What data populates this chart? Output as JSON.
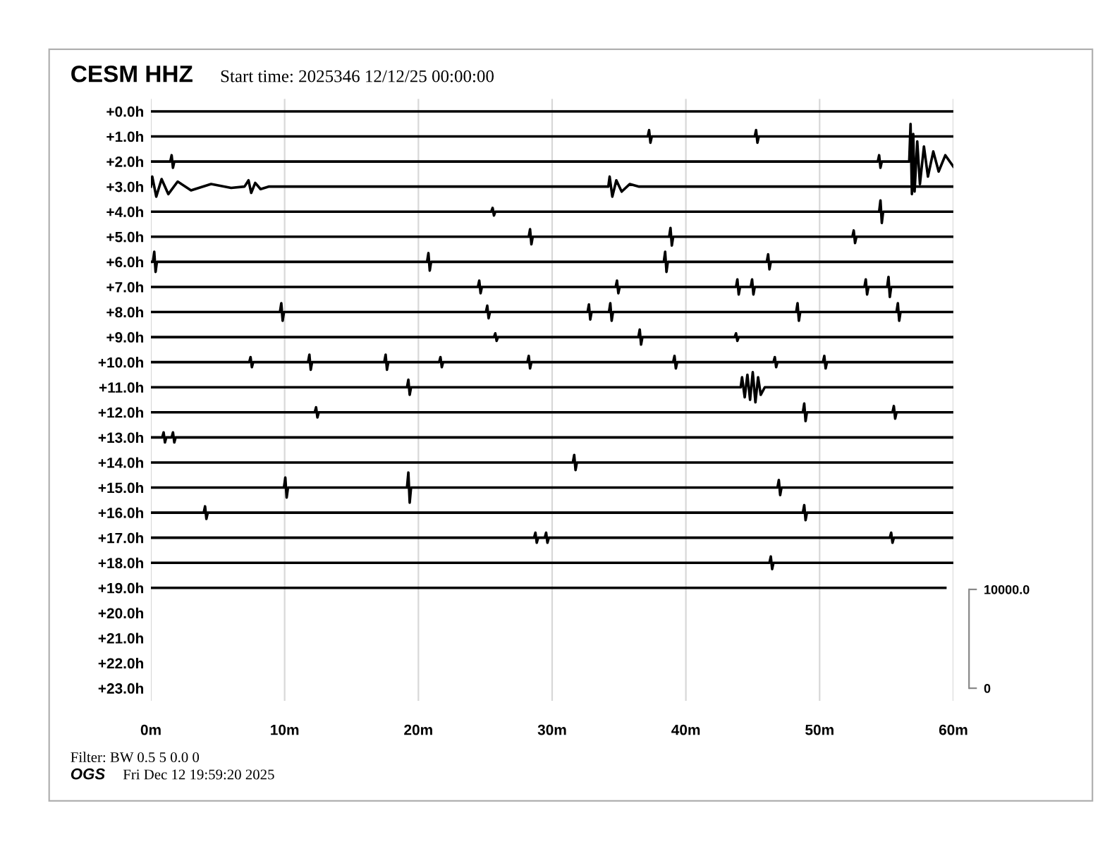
{
  "chart_data": {
    "type": "line",
    "title": "CESM HHZ",
    "subtitle": "Start time: 2025346 12/12/25 00:00:00",
    "annotations": [
      "Filter: BW 0.5 5 0.0 0",
      "OGS",
      "Fri Dec 12 19:59:20 2025"
    ],
    "xlim": [
      0,
      60
    ],
    "xticks": [
      {
        "value": 0,
        "label": "0m"
      },
      {
        "value": 10,
        "label": "10m"
      },
      {
        "value": 20,
        "label": "20m"
      },
      {
        "value": 30,
        "label": "30m"
      },
      {
        "value": 40,
        "label": "40m"
      },
      {
        "value": 50,
        "label": "50m"
      },
      {
        "value": 60,
        "label": "60m"
      }
    ],
    "ylim": [
      23.5,
      -0.5
    ],
    "yticks": [
      {
        "value": 0,
        "label": "+0.0h"
      },
      {
        "value": 1,
        "label": "+1.0h"
      },
      {
        "value": 2,
        "label": "+2.0h"
      },
      {
        "value": 3,
        "label": "+3.0h"
      },
      {
        "value": 4,
        "label": "+4.0h"
      },
      {
        "value": 5,
        "label": "+5.0h"
      },
      {
        "value": 6,
        "label": "+6.0h"
      },
      {
        "value": 7,
        "label": "+7.0h"
      },
      {
        "value": 8,
        "label": "+8.0h"
      },
      {
        "value": 9,
        "label": "+9.0h"
      },
      {
        "value": 10,
        "label": "+10.0h"
      },
      {
        "value": 11,
        "label": "+11.0h"
      },
      {
        "value": 12,
        "label": "+12.0h"
      },
      {
        "value": 13,
        "label": "+13.0h"
      },
      {
        "value": 14,
        "label": "+14.0h"
      },
      {
        "value": 15,
        "label": "+15.0h"
      },
      {
        "value": 16,
        "label": "+16.0h"
      },
      {
        "value": 17,
        "label": "+17.0h"
      },
      {
        "value": 18,
        "label": "+18.0h"
      },
      {
        "value": 19,
        "label": "+19.0h"
      },
      {
        "value": 20,
        "label": "+20.0h"
      },
      {
        "value": 21,
        "label": "+21.0h"
      },
      {
        "value": 22,
        "label": "+22.0h"
      },
      {
        "value": 23,
        "label": "+23.0h"
      }
    ],
    "y2lim": [
      -1270,
      59650
    ],
    "y2ticks": [
      0,
      {
        "value": 10000,
        "label": "10000.0"
      }
    ],
    "grid": "x",
    "legend": false,
    "marker": "none",
    "line_style": "solid",
    "series": [
      {
        "color": "#000000",
        "x": [
          0,
          60
        ],
        "values": [
          0,
          0
        ]
      },
      {
        "color": "#000000",
        "x": [
          0,
          37.15,
          37.25,
          37.35,
          37.45,
          45.15,
          45.25,
          45.35,
          45.45,
          60
        ],
        "values": [
          1,
          1,
          0.75,
          1.25,
          1,
          1,
          0.75,
          1.25,
          1,
          1
        ]
      },
      {
        "color": "#000000",
        "x": [
          0,
          1.45,
          1.55,
          1.65,
          1.75,
          54.35,
          54.45,
          54.55,
          54.65,
          56.7,
          56.8,
          56.9,
          57.0,
          57.1,
          57.3,
          57.5,
          57.8,
          58.1,
          58.5,
          58.9,
          59.4,
          60
        ],
        "values": [
          2,
          2,
          1.75,
          2.25,
          2,
          2,
          1.75,
          2.25,
          2,
          2,
          0.5,
          3.3,
          0.9,
          3.2,
          1.2,
          2.9,
          1.4,
          2.6,
          1.6,
          2.4,
          1.75,
          2.2
        ]
      },
      {
        "color": "#000000",
        "x": [
          0,
          0.1,
          0.4,
          0.8,
          1.3,
          2,
          3,
          4.5,
          6,
          7,
          7.3,
          7.5,
          7.8,
          8.2,
          8.8,
          34.2,
          34.3,
          34.5,
          34.8,
          35.2,
          35.8,
          36.5,
          60
        ],
        "values": [
          3,
          2.6,
          3.4,
          2.7,
          3.3,
          2.8,
          3.15,
          2.9,
          3.05,
          3,
          2.75,
          3.25,
          2.85,
          3.1,
          3,
          3,
          2.6,
          3.4,
          2.75,
          3.2,
          2.9,
          3,
          3
        ]
      },
      {
        "color": "#000000",
        "x": [
          0,
          25.45,
          25.55,
          25.65,
          25.75,
          54.45,
          54.55,
          54.65,
          54.75,
          60
        ],
        "values": [
          4,
          4,
          3.85,
          4.15,
          4,
          4,
          3.55,
          4.45,
          4,
          4
        ]
      },
      {
        "color": "#000000",
        "x": [
          0,
          28.25,
          28.35,
          28.45,
          28.55,
          38.75,
          38.85,
          38.95,
          39.05,
          52.45,
          52.55,
          52.65,
          52.75,
          60
        ],
        "values": [
          5,
          5,
          4.7,
          5.3,
          5,
          5,
          4.65,
          5.35,
          5,
          5,
          4.75,
          5.25,
          5,
          5
        ]
      },
      {
        "color": "#000000",
        "x": [
          0,
          0.15,
          0.25,
          0.35,
          0.45,
          20.65,
          20.75,
          20.85,
          20.95,
          38.35,
          38.45,
          38.55,
          38.65,
          46.05,
          46.15,
          46.25,
          46.35,
          60
        ],
        "values": [
          6,
          6,
          5.6,
          6.4,
          6,
          6,
          5.65,
          6.35,
          6,
          6,
          5.6,
          6.4,
          6,
          6,
          5.7,
          6.3,
          6,
          6
        ]
      },
      {
        "color": "#000000",
        "x": [
          0,
          24.45,
          24.55,
          24.65,
          24.75,
          34.75,
          34.85,
          34.95,
          35.05,
          43.75,
          43.85,
          43.95,
          44.05,
          44.85,
          44.95,
          45.05,
          45.15,
          53.35,
          53.45,
          53.55,
          53.65,
          55.05,
          55.15,
          55.25,
          55.35,
          60
        ],
        "values": [
          7,
          7,
          6.75,
          7.25,
          7,
          7,
          6.75,
          7.25,
          7,
          7,
          6.7,
          7.3,
          7,
          7,
          6.7,
          7.3,
          7,
          7,
          6.7,
          7.3,
          7,
          7,
          6.6,
          7.4,
          7,
          7
        ]
      },
      {
        "color": "#000000",
        "x": [
          0,
          9.65,
          9.75,
          9.85,
          9.95,
          25.05,
          25.15,
          25.25,
          25.35,
          32.65,
          32.75,
          32.85,
          32.95,
          34.25,
          34.35,
          34.45,
          34.55,
          48.25,
          48.35,
          48.45,
          48.55,
          55.75,
          55.85,
          55.95,
          56.05,
          60
        ],
        "values": [
          8,
          8,
          7.65,
          8.35,
          8,
          8,
          7.75,
          8.25,
          8,
          8,
          7.7,
          8.3,
          8,
          8,
          7.65,
          8.35,
          8,
          8,
          7.65,
          8.35,
          8,
          8,
          7.65,
          8.35,
          8,
          8
        ]
      },
      {
        "color": "#000000",
        "x": [
          0,
          25.65,
          25.75,
          25.85,
          25.95,
          36.45,
          36.55,
          36.65,
          36.75,
          43.65,
          43.75,
          43.85,
          43.95,
          60
        ],
        "values": [
          9,
          9,
          8.85,
          9.15,
          9,
          9,
          8.7,
          9.3,
          9,
          9,
          8.85,
          9.15,
          9,
          9
        ]
      },
      {
        "color": "#000000",
        "x": [
          0,
          7.35,
          7.45,
          7.55,
          7.65,
          11.75,
          11.85,
          11.95,
          12.05,
          17.45,
          17.55,
          17.65,
          17.75,
          21.55,
          21.65,
          21.75,
          21.85,
          28.15,
          28.25,
          28.35,
          28.45,
          39.05,
          39.15,
          39.25,
          39.35,
          46.55,
          46.65,
          46.75,
          46.85,
          50.25,
          50.35,
          50.45,
          50.55,
          60
        ],
        "values": [
          10,
          10,
          9.8,
          10.2,
          10,
          10,
          9.7,
          10.3,
          10,
          10,
          9.7,
          10.3,
          10,
          10,
          9.8,
          10.2,
          10,
          10,
          9.75,
          10.25,
          10,
          10,
          9.75,
          10.25,
          10,
          10,
          9.8,
          10.2,
          10,
          10,
          9.75,
          10.25,
          10,
          10
        ]
      },
      {
        "color": "#000000",
        "x": [
          0,
          19.15,
          19.25,
          19.35,
          19.45,
          44.1,
          44.2,
          44.4,
          44.6,
          44.8,
          45.0,
          45.2,
          45.4,
          45.6,
          45.9,
          60
        ],
        "values": [
          11,
          11,
          10.7,
          11.3,
          11,
          11,
          10.6,
          11.4,
          10.5,
          11.5,
          10.4,
          11.6,
          10.6,
          11.3,
          11,
          11
        ]
      },
      {
        "color": "#000000",
        "x": [
          0,
          12.25,
          12.35,
          12.45,
          12.55,
          48.75,
          48.85,
          48.95,
          49.05,
          55.45,
          55.55,
          55.65,
          55.75,
          60
        ],
        "values": [
          12,
          12,
          11.8,
          12.2,
          12,
          12,
          11.65,
          12.35,
          12,
          12,
          11.75,
          12.25,
          12,
          12
        ]
      },
      {
        "color": "#000000",
        "x": [
          0,
          0.85,
          0.95,
          1.05,
          1.15,
          1.55,
          1.65,
          1.75,
          1.85,
          60
        ],
        "values": [
          13,
          13,
          12.8,
          13.2,
          13,
          13,
          12.8,
          13.2,
          13,
          13
        ]
      },
      {
        "color": "#000000",
        "x": [
          0,
          31.55,
          31.65,
          31.75,
          31.85,
          60
        ],
        "values": [
          14,
          14,
          13.7,
          14.3,
          14,
          14
        ]
      },
      {
        "color": "#000000",
        "x": [
          0,
          9.95,
          10.05,
          10.15,
          10.25,
          19.15,
          19.25,
          19.35,
          19.45,
          46.85,
          46.95,
          47.05,
          47.15,
          60
        ],
        "values": [
          15,
          15,
          14.6,
          15.4,
          15,
          15,
          14.4,
          15.6,
          15,
          15,
          14.7,
          15.3,
          15,
          15
        ]
      },
      {
        "color": "#000000",
        "x": [
          0,
          3.95,
          4.05,
          4.15,
          4.25,
          48.75,
          48.85,
          48.95,
          49.05,
          60
        ],
        "values": [
          16,
          16,
          15.75,
          16.25,
          16,
          16,
          15.7,
          16.3,
          16,
          16
        ]
      },
      {
        "color": "#000000",
        "x": [
          0,
          28.65,
          28.75,
          28.85,
          28.95,
          29.45,
          29.55,
          29.65,
          29.75,
          55.25,
          55.35,
          55.45,
          55.55,
          60
        ],
        "values": [
          17,
          17,
          16.8,
          17.2,
          17,
          17,
          16.8,
          17.2,
          17,
          17,
          16.8,
          17.2,
          17,
          17
        ]
      },
      {
        "color": "#000000",
        "x": [
          0,
          46.25,
          46.35,
          46.45,
          46.55,
          60
        ],
        "values": [
          18,
          18,
          17.75,
          18.25,
          18,
          18
        ]
      },
      {
        "color": "#000000",
        "x": [
          0,
          59.4
        ],
        "values": [
          19,
          19
        ]
      }
    ]
  }
}
